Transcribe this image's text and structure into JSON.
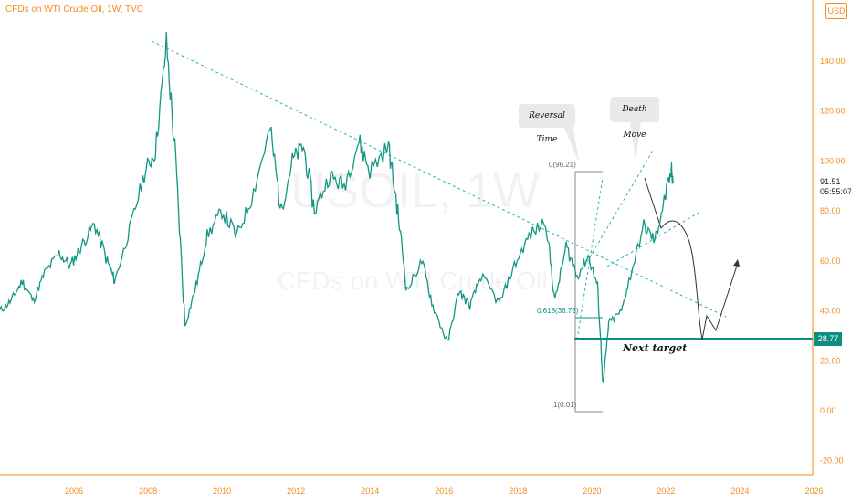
{
  "header": {
    "title": "CFDs on WTI Crude Oil, 1W, TVC",
    "currency": "USD"
  },
  "watermark": {
    "symbol": "USOIL, 1W",
    "name": "CFDs on WTI Crude Oil"
  },
  "last_price": {
    "value": "91.51",
    "countdown": "05:55:07"
  },
  "target_tag": "28.77",
  "annotations": {
    "reversal": "Reversal Time",
    "death": "Death Move",
    "next_target": "Next target"
  },
  "fib_labels": {
    "top": "0(96.21)",
    "mid": "0.618(36.76)",
    "bottom": "1(0.01)"
  },
  "colors": {
    "accent": "#f08c1a",
    "teal": "#0c8f80",
    "trend": "#2ab4ad"
  },
  "chart_data": {
    "type": "line",
    "title": "CFDs on WTI Crude Oil, 1W, TVC",
    "xlabel": "",
    "ylabel": "",
    "xlim": [
      2004.0,
      2027.0
    ],
    "ylim": [
      -25,
      160
    ],
    "x_ticks": [
      2006,
      2008,
      2010,
      2012,
      2014,
      2016,
      2018,
      2020,
      2022,
      2024,
      2026
    ],
    "y_ticks": [
      "-20.00",
      "0.00",
      "20.00",
      "40.00",
      "60.00",
      "80.00",
      "100.00",
      "120.00",
      "140.00"
    ],
    "grid": false,
    "series": [
      {
        "values": [
          [
            2004.0,
            40
          ],
          [
            2004.3,
            44
          ],
          [
            2004.6,
            52
          ],
          [
            2004.9,
            44
          ],
          [
            2005.2,
            55
          ],
          [
            2005.6,
            63
          ],
          [
            2005.9,
            58
          ],
          [
            2006.2,
            66
          ],
          [
            2006.55,
            75
          ],
          [
            2006.9,
            60
          ],
          [
            2007.1,
            52
          ],
          [
            2007.5,
            72
          ],
          [
            2007.9,
            95
          ],
          [
            2008.2,
            104
          ],
          [
            2008.5,
            147
          ],
          [
            2008.75,
            100
          ],
          [
            2009.0,
            34
          ],
          [
            2009.3,
            50
          ],
          [
            2009.6,
            70
          ],
          [
            2010.0,
            80
          ],
          [
            2010.4,
            70
          ],
          [
            2010.8,
            85
          ],
          [
            2011.3,
            113
          ],
          [
            2011.6,
            80
          ],
          [
            2011.9,
            100
          ],
          [
            2012.2,
            106
          ],
          [
            2012.5,
            80
          ],
          [
            2012.9,
            94
          ],
          [
            2013.3,
            90
          ],
          [
            2013.7,
            108
          ],
          [
            2014.0,
            96
          ],
          [
            2014.5,
            106
          ],
          [
            2014.75,
            80
          ],
          [
            2015.0,
            48
          ],
          [
            2015.4,
            60
          ],
          [
            2015.7,
            42
          ],
          [
            2016.1,
            27
          ],
          [
            2016.4,
            48
          ],
          [
            2016.7,
            42
          ],
          [
            2017.0,
            54
          ],
          [
            2017.5,
            43
          ],
          [
            2017.9,
            58
          ],
          [
            2018.3,
            70
          ],
          [
            2018.75,
            76
          ],
          [
            2019.0,
            44
          ],
          [
            2019.3,
            66
          ],
          [
            2019.6,
            54
          ],
          [
            2019.9,
            62
          ],
          [
            2020.15,
            50
          ],
          [
            2020.3,
            10
          ],
          [
            2020.45,
            35
          ],
          [
            2020.8,
            40
          ],
          [
            2021.0,
            52
          ],
          [
            2021.4,
            74
          ],
          [
            2021.7,
            68
          ],
          [
            2021.95,
            84
          ],
          [
            2022.15,
            96
          ],
          [
            2022.2,
            91.51
          ]
        ]
      }
    ],
    "target_level": 28.77,
    "fib_levels": [
      96.21,
      36.76,
      0.01
    ]
  }
}
